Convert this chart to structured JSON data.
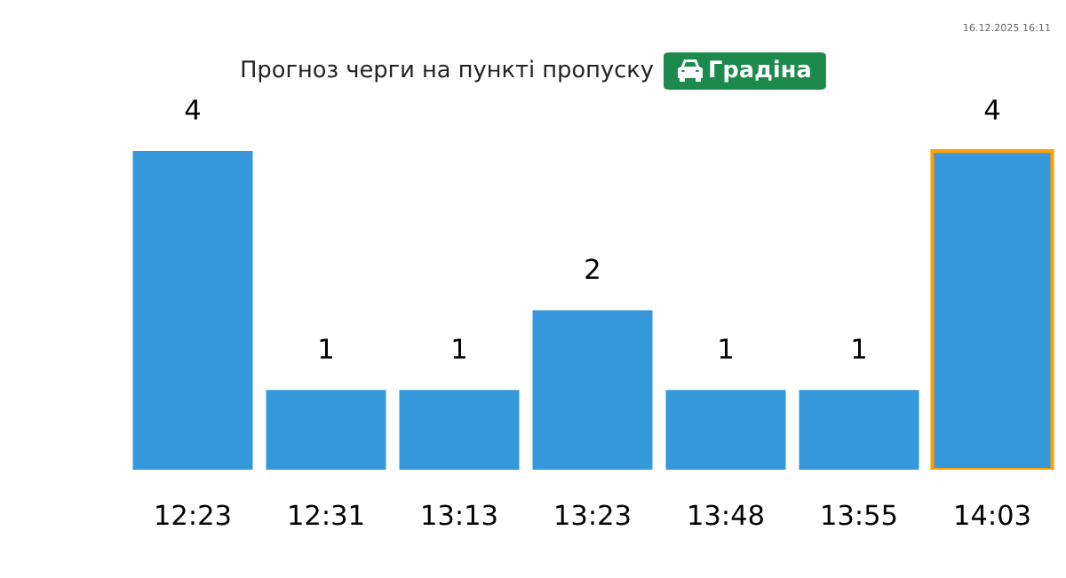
{
  "chart_data": {
    "type": "bar",
    "title": "Прогноз черги на пункті пропуску",
    "subtitle": "Градіна",
    "categories": [
      "12:23",
      "12:31",
      "13:13",
      "13:23",
      "13:48",
      "13:55",
      "14:03"
    ],
    "values": [
      4,
      1,
      1,
      2,
      1,
      1,
      4
    ],
    "color": "#3498db",
    "data_labels": true,
    "grid": false,
    "legend": false,
    "annotations": [
      "16.12.2025 16:11"
    ]
  }
}
